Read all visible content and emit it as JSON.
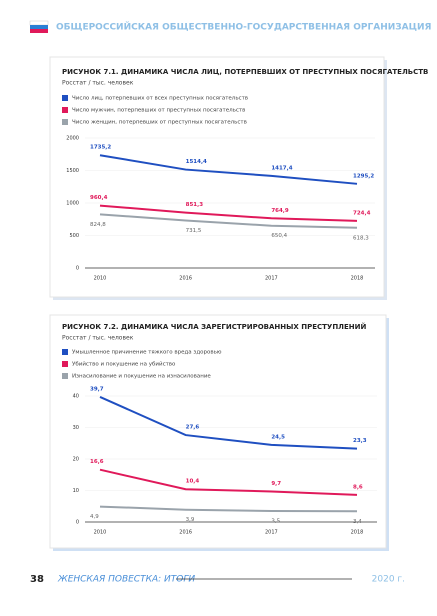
{
  "header": {
    "title": "ОБЩЕРОССИЙСКАЯ ОБЩЕСТВЕННО-ГОСУДАРСТВЕННАЯ ОРГАНИЗАЦИЯ"
  },
  "chart_data": [
    {
      "type": "line",
      "title": "РИСУНОК 7.1. ДИНАМИКА ЧИСЛА ЛИЦ, ПОТЕРПЕВШИХ ОТ ПРЕСТУПНЫХ ПОСЯГАТЕЛЬСТВ",
      "subtitle": "Росстат / тыс. человек",
      "categories": [
        "2010",
        "2016",
        "2017",
        "2018"
      ],
      "series": [
        {
          "name": "Число лиц, потерпевших от всех преступных посягательств",
          "color": "#1f4fc1",
          "values": [
            1735.2,
            1514.4,
            1417.4,
            1295.2
          ],
          "value_labels": [
            "1735,2",
            "1514,4",
            "1417,4",
            "1295,2"
          ]
        },
        {
          "name": "Число мужчин, потерпевших от преступных посягательств",
          "color": "#e0195a",
          "values": [
            960.4,
            851.3,
            764.9,
            724.4
          ],
          "value_labels": [
            "960,4",
            "851,3",
            "764,9",
            "724,4"
          ]
        },
        {
          "name": "Число женщин, потерпевших от преступных посягательств",
          "color": "#9aa3ab",
          "values": [
            824.8,
            731.5,
            650.4,
            618.3
          ],
          "value_labels": [
            "824,8",
            "731,5",
            "650,4",
            "618,3"
          ]
        }
      ],
      "ylim": [
        0,
        2000
      ],
      "yticks": [
        0,
        500,
        1000,
        1500,
        2000
      ],
      "grid": true
    },
    {
      "type": "line",
      "title": "РИСУНОК 7.2. ДИНАМИКА ЧИСЛА ЗАРЕГИСТРИРОВАННЫХ ПРЕСТУПЛЕНИЙ",
      "subtitle": "Росстат / тыс. человек",
      "categories": [
        "2010",
        "2016",
        "2017",
        "2018"
      ],
      "series": [
        {
          "name": "Умышленное причинение тяжкого вреда здоровью",
          "color": "#1f4fc1",
          "values": [
            39.7,
            27.6,
            24.5,
            23.3
          ],
          "value_labels": [
            "39,7",
            "27,6",
            "24,5",
            "23,3"
          ]
        },
        {
          "name": "Убийство и покушение на убийство",
          "color": "#e0195a",
          "values": [
            16.6,
            10.4,
            9.7,
            8.6
          ],
          "value_labels": [
            "16,6",
            "10,4",
            "9,7",
            "8,6"
          ]
        },
        {
          "name": "Изнасилование и покушение на изнасилование",
          "color": "#9aa3ab",
          "values": [
            4.9,
            3.9,
            3.5,
            3.4
          ],
          "value_labels": [
            "4,9",
            "3,9",
            "3,5",
            "3,4"
          ]
        }
      ],
      "ylim": [
        0,
        40
      ],
      "yticks": [
        0,
        10,
        20,
        30,
        40
      ],
      "grid": true
    }
  ],
  "footer": {
    "page": "38",
    "title": "ЖЕНСКАЯ ПОВЕСТКА: ИТОГИ",
    "year": "2020 г."
  }
}
